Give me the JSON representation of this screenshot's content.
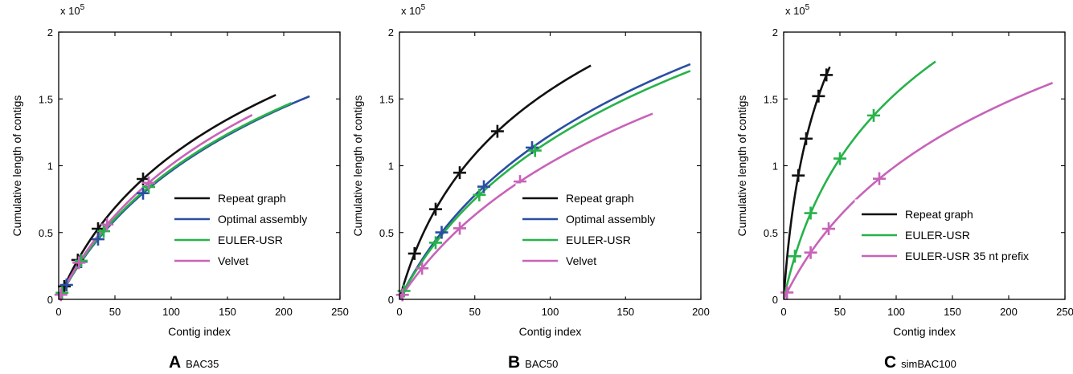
{
  "colors": {
    "repeat_graph": "#111111",
    "optimal_assembly": "#2a4ea2",
    "euler_usr": "#27b24a",
    "velvet": "#c763b8"
  },
  "chart_data": [
    {
      "type": "line",
      "panel_letter": "A",
      "panel_name": "BAC35",
      "xlabel": "Contig index",
      "ylabel": "Cumulative length of contigs",
      "y_exponent_label": "x 10",
      "y_exponent": "5",
      "xlim": [
        0,
        250
      ],
      "ylim": [
        0,
        2
      ],
      "xticks": [
        0,
        50,
        100,
        150,
        200,
        250
      ],
      "yticks": [
        0,
        0.5,
        1,
        1.5,
        2
      ],
      "xtick_labels": [
        "0",
        "50",
        "100",
        "150",
        "200",
        "250"
      ],
      "ytick_labels": [
        "0",
        "0.5",
        "1",
        "1.5",
        "2"
      ],
      "legend_position": "lower-right",
      "series": [
        {
          "name": "Repeat graph",
          "color_key": "repeat_graph",
          "x_max": 193,
          "y_max": 1.53,
          "k": 45,
          "markers": [
            5,
            17,
            35,
            75
          ]
        },
        {
          "name": "Optimal assembly",
          "color_key": "optimal_assembly",
          "x_max": 223,
          "y_max": 1.52,
          "k": 60,
          "markers": [
            7,
            20,
            35,
            75
          ]
        },
        {
          "name": "EULER-USR",
          "color_key": "euler_usr",
          "x_max": 207,
          "y_max": 1.47,
          "k": 57,
          "markers": [
            3,
            20,
            40,
            80
          ]
        },
        {
          "name": "Velvet",
          "color_key": "velvet",
          "x_max": 172,
          "y_max": 1.38,
          "k": 56,
          "markers": [
            2,
            18,
            43,
            80
          ]
        }
      ]
    },
    {
      "type": "line",
      "panel_letter": "B",
      "panel_name": "BAC50",
      "xlabel": "Contig index",
      "ylabel": "Cumulative length of contigs",
      "y_exponent_label": "x 10",
      "y_exponent": "5",
      "xlim": [
        0,
        200
      ],
      "ylim": [
        0,
        2
      ],
      "xticks": [
        0,
        50,
        100,
        150,
        200
      ],
      "yticks": [
        0,
        0.5,
        1,
        1.5,
        2
      ],
      "xtick_labels": [
        "0",
        "50",
        "100",
        "150",
        "200"
      ],
      "ytick_labels": [
        "0",
        "0.5",
        "1",
        "1.5",
        "2"
      ],
      "legend_position": "lower-right",
      "series": [
        {
          "name": "Repeat graph",
          "color_key": "repeat_graph",
          "x_max": 127,
          "y_max": 1.75,
          "k": 22,
          "markers": [
            10,
            24,
            40,
            65
          ]
        },
        {
          "name": "Optimal assembly",
          "color_key": "optimal_assembly",
          "x_max": 193,
          "y_max": 1.76,
          "k": 48,
          "markers": [
            28,
            56,
            88
          ]
        },
        {
          "name": "EULER-USR",
          "color_key": "euler_usr",
          "x_max": 193,
          "y_max": 1.71,
          "k": 50,
          "markers": [
            3,
            24,
            53,
            90
          ]
        },
        {
          "name": "Velvet",
          "color_key": "velvet",
          "x_max": 168,
          "y_max": 1.39,
          "k": 60,
          "markers": [
            2,
            15,
            40,
            80
          ]
        }
      ]
    },
    {
      "type": "line",
      "panel_letter": "C",
      "panel_name": "simBAC100",
      "xlabel": "Contig index",
      "ylabel": "Cumulative length of contigs",
      "y_exponent_label": "x 10",
      "y_exponent": "5",
      "xlim": [
        0,
        250
      ],
      "ylim": [
        0,
        2
      ],
      "xticks": [
        0,
        50,
        100,
        150,
        200,
        250
      ],
      "yticks": [
        0,
        0.5,
        1,
        1.5,
        2
      ],
      "xtick_labels": [
        "0",
        "50",
        "100",
        "150",
        "200",
        "250"
      ],
      "ytick_labels": [
        "0",
        "0.5",
        "1",
        "1.5",
        "2"
      ],
      "legend_position": "lower-right",
      "series": [
        {
          "name": "Repeat graph",
          "color_key": "repeat_graph",
          "x_max": 41,
          "y_max": 1.74,
          "k": 8,
          "markers": [
            13,
            20,
            31,
            38
          ]
        },
        {
          "name": "EULER-USR",
          "color_key": "euler_usr",
          "x_max": 135,
          "y_max": 1.78,
          "k": 25,
          "markers": [
            10,
            24,
            50,
            80
          ]
        },
        {
          "name": "EULER-USR 35 nt prefix",
          "color_key": "velvet",
          "x_max": 239,
          "y_max": 1.62,
          "k": 55,
          "markers": [
            3,
            24,
            40,
            85
          ]
        }
      ]
    }
  ]
}
